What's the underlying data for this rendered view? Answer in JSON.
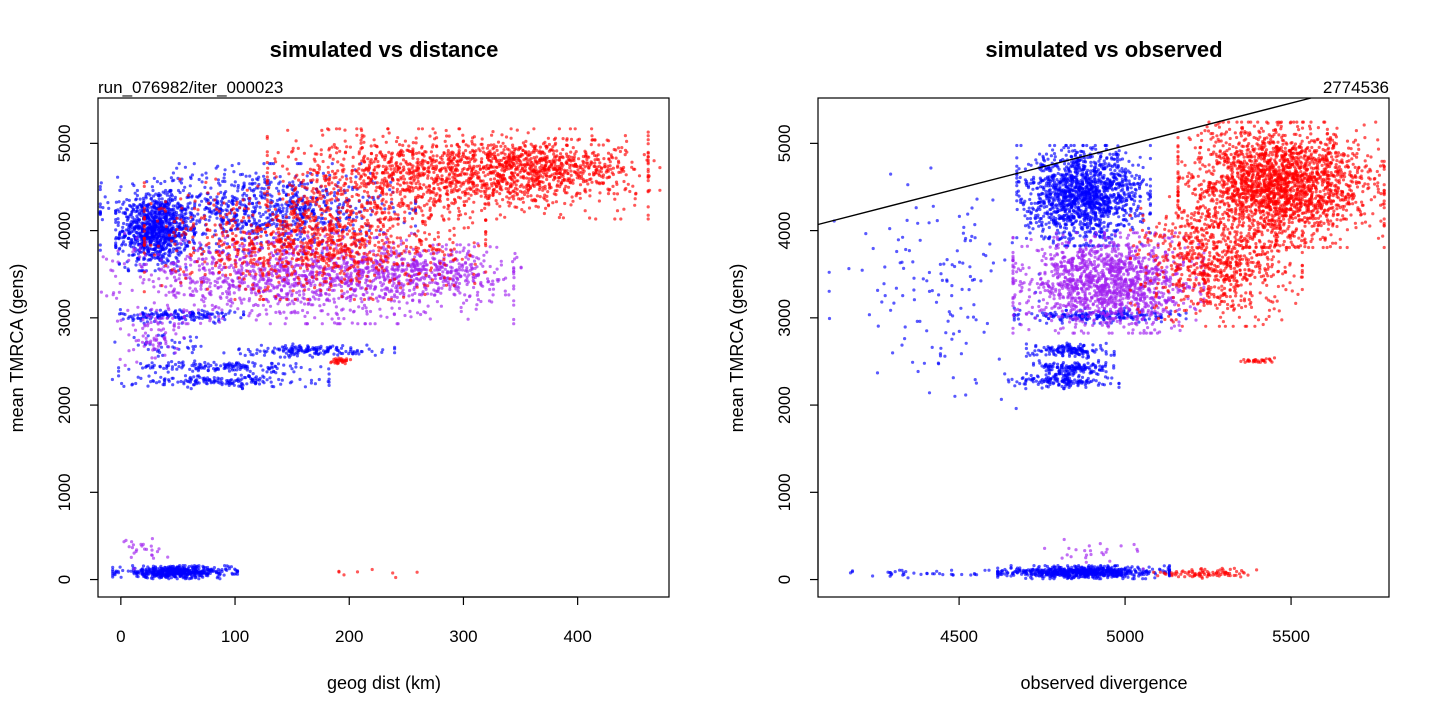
{
  "chart_data": [
    {
      "type": "scatter",
      "title": "simulated vs distance",
      "annotation_topleft": "run_076982/iter_000023",
      "xlabel": "geog dist (km)",
      "ylabel": "mean TMRCA (gens)",
      "xlim": [
        -20,
        480
      ],
      "ylim": [
        -200,
        5520
      ],
      "xticks": [
        0,
        100,
        200,
        300,
        400
      ],
      "yticks": [
        0,
        1000,
        2000,
        3000,
        4000,
        5000
      ],
      "colors": {
        "blue": "#0000ff",
        "purple": "#a020f0",
        "red": "#ff0000"
      },
      "clusters": [
        {
          "color": "blue",
          "x": [
            0,
            60
          ],
          "y": [
            3600,
            4400
          ],
          "n": 900
        },
        {
          "color": "blue",
          "x": [
            0,
            240
          ],
          "y": [
            3800,
            4700
          ],
          "n": 900
        },
        {
          "color": "blue",
          "x": [
            0,
            100
          ],
          "y": [
            2950,
            3100
          ],
          "n": 160
        },
        {
          "color": "blue",
          "x": [
            100,
            230
          ],
          "y": [
            2560,
            2690
          ],
          "n": 160
        },
        {
          "color": "blue",
          "x": [
            10,
            170
          ],
          "y": [
            2380,
            2500
          ],
          "n": 150
        },
        {
          "color": "blue",
          "x": [
            5,
            170
          ],
          "y": [
            2200,
            2350
          ],
          "n": 170
        },
        {
          "color": "blue",
          "x": [
            0,
            95
          ],
          "y": [
            20,
            150
          ],
          "n": 500
        },
        {
          "color": "blue",
          "x": [
            0,
            80
          ],
          "y": [
            2550,
            2800
          ],
          "n": 40
        },
        {
          "color": "purple",
          "x": [
            0,
            320
          ],
          "y": [
            3000,
            3900
          ],
          "n": 1300
        },
        {
          "color": "purple",
          "x": [
            200,
            340
          ],
          "y": [
            3300,
            3800
          ],
          "n": 300
        },
        {
          "color": "purple",
          "x": [
            0,
            60
          ],
          "y": [
            2500,
            3100
          ],
          "n": 80
        },
        {
          "color": "purple",
          "x": [
            0,
            40
          ],
          "y": [
            150,
            500
          ],
          "n": 25
        },
        {
          "color": "red",
          "x": [
            40,
            300
          ],
          "y": [
            3300,
            4500
          ],
          "n": 1100
        },
        {
          "color": "red",
          "x": [
            150,
            440
          ],
          "y": [
            4200,
            5100
          ],
          "n": 1400
        },
        {
          "color": "red",
          "x": [
            300,
            460
          ],
          "y": [
            4500,
            5000
          ],
          "n": 400
        },
        {
          "color": "red",
          "x": [
            185,
            200
          ],
          "y": [
            2480,
            2540
          ],
          "n": 30
        },
        {
          "color": "red",
          "x": [
            170,
            270
          ],
          "y": [
            30,
            120
          ],
          "n": 8
        }
      ]
    },
    {
      "type": "scatter",
      "title": "simulated vs observed",
      "annotation_topright": "2774536",
      "xlabel": "observed divergence",
      "ylabel": "mean TMRCA (gens)",
      "xlim": [
        4075,
        5795
      ],
      "ylim": [
        -200,
        5520
      ],
      "xticks": [
        4500,
        5000,
        5500
      ],
      "yticks": [
        0,
        1000,
        2000,
        3000,
        4000,
        5000
      ],
      "reference_line": {
        "from": [
          4075,
          4070
        ],
        "to": [
          5560,
          5520
        ]
      },
      "colors": {
        "blue": "#0000ff",
        "purple": "#a020f0",
        "red": "#ff0000"
      },
      "clusters": [
        {
          "color": "blue",
          "x": [
            4700,
            5050
          ],
          "y": [
            3900,
            4900
          ],
          "n": 1500
        },
        {
          "color": "blue",
          "x": [
            4700,
            5150
          ],
          "y": [
            2950,
            3100
          ],
          "n": 200
        },
        {
          "color": "blue",
          "x": [
            4720,
            4950
          ],
          "y": [
            2550,
            2700
          ],
          "n": 150
        },
        {
          "color": "blue",
          "x": [
            4740,
            4950
          ],
          "y": [
            2350,
            2500
          ],
          "n": 150
        },
        {
          "color": "blue",
          "x": [
            4670,
            4960
          ],
          "y": [
            2200,
            2350
          ],
          "n": 150
        },
        {
          "color": "blue",
          "x": [
            4650,
            5100
          ],
          "y": [
            20,
            150
          ],
          "n": 700
        },
        {
          "color": "blue",
          "x": [
            4180,
            4650
          ],
          "y": [
            20,
            120
          ],
          "n": 40
        },
        {
          "color": "blue",
          "x": [
            4150,
            4700
          ],
          "y": [
            2100,
            4700
          ],
          "n": 140
        },
        {
          "color": "purple",
          "x": [
            4700,
            5200
          ],
          "y": [
            2900,
            3900
          ],
          "n": 1400
        },
        {
          "color": "purple",
          "x": [
            4750,
            5050
          ],
          "y": [
            150,
            500
          ],
          "n": 25
        },
        {
          "color": "red",
          "x": [
            5200,
            5740
          ],
          "y": [
            3900,
            5150
          ],
          "n": 2200
        },
        {
          "color": "red",
          "x": [
            5050,
            5500
          ],
          "y": [
            3000,
            4300
          ],
          "n": 800
        },
        {
          "color": "red",
          "x": [
            5100,
            5400
          ],
          "y": [
            20,
            120
          ],
          "n": 90
        },
        {
          "color": "red",
          "x": [
            5350,
            5450
          ],
          "y": [
            2480,
            2540
          ],
          "n": 30
        }
      ]
    }
  ]
}
